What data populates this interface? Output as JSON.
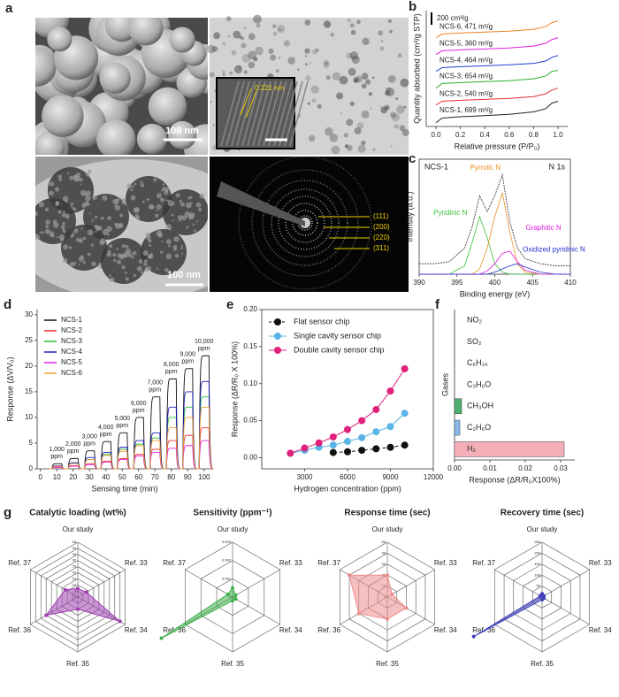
{
  "panel_a": {
    "label": "a",
    "scale_bars": [
      "100 nm",
      "100 nm"
    ],
    "lattice_spacing": "0.221 nm",
    "diffraction_rings": [
      "(111)",
      "(200)",
      "(220)",
      "(311)"
    ]
  },
  "chart_data": [
    {
      "type": "line",
      "label": "b",
      "ylabel": "Quantity absorbed (cm³/g STP)",
      "xlabel": "Relative pressure (P/P₀)",
      "scale_bar": "200 cm³/g",
      "x": [
        0,
        0.05,
        0.2,
        0.4,
        0.6,
        0.8,
        0.9,
        0.95,
        1.0
      ],
      "xlim": [
        -0.08,
        1.08
      ],
      "xticks": [
        {
          "value": 0,
          "label": "0.0"
        },
        0.2,
        0.4,
        0.6,
        0.8,
        {
          "value": 1,
          "label": "1.0"
        }
      ],
      "ylim": [
        0,
        6.2
      ],
      "series": [
        {
          "name": "NCS-1, 699 m²/g",
          "color": "#222222",
          "values": [
            0.2,
            0.45,
            0.52,
            0.58,
            0.65,
            0.78,
            0.95,
            1.25,
            1.35
          ]
        },
        {
          "name": "NCS-2, 540 m²/g",
          "color": "#e03030",
          "values": [
            1.15,
            1.35,
            1.4,
            1.45,
            1.5,
            1.6,
            1.75,
            1.95,
            2.05
          ]
        },
        {
          "name": "NCS-3, 654 m²/g",
          "color": "#2cb22c",
          "values": [
            2.05,
            2.3,
            2.35,
            2.4,
            2.45,
            2.55,
            2.7,
            2.95,
            3.0
          ]
        },
        {
          "name": "NCS-4, 464 m²/g",
          "color": "#2040d0",
          "values": [
            2.95,
            3.15,
            3.2,
            3.25,
            3.3,
            3.38,
            3.5,
            3.7,
            3.8
          ]
        },
        {
          "name": "NCS-5, 360 m²/g",
          "color": "#e020e0",
          "values": [
            3.85,
            4.05,
            4.1,
            4.15,
            4.2,
            4.3,
            4.45,
            4.65,
            4.75
          ]
        },
        {
          "name": "NCS-6, 471 m²/g",
          "color": "#f08020",
          "values": [
            4.75,
            4.95,
            5.0,
            5.05,
            5.1,
            5.2,
            5.35,
            5.55,
            5.65
          ]
        }
      ]
    },
    {
      "type": "line",
      "label": "c",
      "title": "NCS-1",
      "annotation": "N 1s",
      "ylabel": "Intensity (a.u.)",
      "xlabel": "Binding energy (eV)",
      "x": [
        390,
        392,
        394,
        396,
        397,
        398,
        399,
        400,
        401,
        402,
        403,
        404,
        406,
        408,
        410
      ],
      "xlim": [
        390,
        410
      ],
      "xticks": [
        390,
        395,
        400,
        405,
        410
      ],
      "ylim": [
        0,
        1.1
      ],
      "series": [
        {
          "color": "#555555",
          "values": [
            0.1,
            0.1,
            0.12,
            0.25,
            0.45,
            0.75,
            0.6,
            0.75,
            0.95,
            0.5,
            0.25,
            0.15,
            0.1,
            0.08,
            0.08
          ]
        },
        {
          "name": "Pyridinic N",
          "color": "#3cc03c",
          "values": [
            0,
            0,
            0,
            0.08,
            0.3,
            0.55,
            0.35,
            0.1,
            0.02,
            0,
            0,
            0,
            0,
            0,
            0
          ]
        },
        {
          "name": "Pyrrolic N",
          "color": "#e89020",
          "values": [
            0,
            0,
            0,
            0,
            0,
            0.05,
            0.25,
            0.55,
            0.78,
            0.4,
            0.1,
            0.02,
            0,
            0,
            0
          ]
        },
        {
          "name": "Graphitic N",
          "color": "#e020e0",
          "values": [
            0,
            0,
            0,
            0,
            0,
            0,
            0.03,
            0.1,
            0.2,
            0.22,
            0.12,
            0.04,
            0,
            0,
            0
          ]
        },
        {
          "name": "Oxidized pyridinic N",
          "color": "#2030d0",
          "values": [
            0,
            0,
            0,
            0,
            0,
            0,
            0,
            0.02,
            0.05,
            0.08,
            0.1,
            0.07,
            0.02,
            0,
            0
          ]
        }
      ]
    },
    {
      "type": "pulse",
      "label": "d",
      "ylabel": "Response (ΔV/V₀)",
      "xlabel": "Sensing time (min)",
      "x": [
        10,
        20,
        30,
        40,
        50,
        60,
        70,
        80,
        90,
        100
      ],
      "pulse_labels": [
        "1,000",
        "2,000",
        "3,000",
        "4,000",
        "5,000",
        "6,000",
        "7,000",
        "8,000",
        "9,000",
        "10,000"
      ],
      "pulse_unit": "ppm",
      "xlim": [
        -2,
        105
      ],
      "xticks": [
        0,
        10,
        20,
        30,
        40,
        50,
        60,
        70,
        80,
        90,
        100
      ],
      "ylim": [
        0,
        31
      ],
      "yticks": [
        0,
        5,
        10,
        15,
        20,
        25,
        30
      ],
      "series": [
        {
          "name": "NCS-1",
          "color": "#111111",
          "values": [
            1,
            2,
            3.5,
            5.3,
            7,
            10,
            14,
            17.5,
            19.5,
            22
          ]
        },
        {
          "name": "NCS-2",
          "color": "#f03030",
          "values": [
            0.3,
            0.6,
            1,
            1.5,
            2,
            2.8,
            3.8,
            5.5,
            6.5,
            8
          ]
        },
        {
          "name": "NCS-3",
          "color": "#30c030",
          "values": [
            0.5,
            1,
            1.8,
            2.8,
            3.8,
            4.8,
            6,
            10,
            12,
            14
          ]
        },
        {
          "name": "NCS-4",
          "color": "#2020c0",
          "values": [
            0.6,
            1.2,
            2.2,
            3.2,
            4.2,
            5.5,
            7,
            12,
            15,
            17
          ]
        },
        {
          "name": "NCS-5",
          "color": "#e020e0",
          "values": [
            0.3,
            0.5,
            0.8,
            1.3,
            1.8,
            2.5,
            3.2,
            4,
            4.5,
            5.5
          ]
        },
        {
          "name": "NCS-6",
          "color": "#f0a030",
          "values": [
            0.5,
            1,
            1.8,
            2.6,
            3.4,
            4.5,
            5.5,
            8,
            10,
            12
          ]
        }
      ]
    },
    {
      "type": "scatter",
      "label": "e",
      "ylabel": "Response (ΔR/R₀ X 100%)",
      "xlabel": "Hydrogen concentration (ppm)",
      "x": [
        2000,
        3000,
        4000,
        5000,
        6000,
        7000,
        8000,
        9000,
        10000
      ],
      "xlim": [
        0,
        12000
      ],
      "xticks": [
        3000,
        6000,
        9000,
        12000
      ],
      "ylim": [
        -0.015,
        0.2
      ],
      "yticks": [
        {
          "value": 0,
          "label": "0.00"
        },
        0.05,
        {
          "value": 0.1,
          "label": "0.10"
        },
        0.15,
        {
          "value": 0.2,
          "label": "0.20"
        }
      ],
      "series": [
        {
          "name": "Flat sensor chip",
          "color": "#111111",
          "dash": true,
          "values": [
            null,
            null,
            null,
            0.007,
            0.008,
            0.01,
            0.012,
            0.014,
            0.017
          ]
        },
        {
          "name": "Single cavity sensor chip",
          "color": "#5ab4e5",
          "values": [
            0.006,
            0.01,
            0.014,
            0.017,
            0.022,
            0.027,
            0.035,
            0.042,
            0.06
          ]
        },
        {
          "name": "Double cavity sensor chip",
          "color": "#e0207a",
          "values": [
            0.006,
            0.013,
            0.02,
            0.028,
            0.038,
            0.05,
            0.065,
            0.09,
            0.12
          ]
        }
      ]
    },
    {
      "type": "bar",
      "label": "f",
      "orientation": "horizontal",
      "ylabel": "Gases",
      "xlabel": "Response (ΔR/R₀X100%)",
      "categories": [
        "NO₂",
        "SO₂",
        "C₆H₁₄",
        "C₃H₆O",
        "CH₃OH",
        "C₂H₆O",
        "H₂"
      ],
      "values": [
        0,
        0,
        0,
        0,
        0.002,
        0.0015,
        0.031
      ],
      "colors": [
        "#cccccc",
        "#cccccc",
        "#cccccc",
        "#cccccc",
        "#4caf70",
        "#8ab8e8",
        "#f4b0b8"
      ],
      "xlim": [
        0,
        0.034
      ],
      "xticks": [
        {
          "value": 0,
          "label": "0.00"
        },
        0.01,
        0.02,
        0.03
      ]
    },
    {
      "type": "radar",
      "label": "g",
      "title": "Catalytic loading (wt%)",
      "color": "#a040b0",
      "axes": [
        "Our study",
        "Ref. 33",
        "Ref. 34",
        "Ref. 35",
        "Ref. 36",
        "Ref. 37"
      ],
      "values": [
        7,
        8,
        40,
        10,
        30,
        12
      ],
      "rlim": [
        0,
        45
      ],
      "rticks": [
        0,
        5,
        10,
        15,
        20,
        25,
        30,
        35,
        40,
        45
      ]
    },
    {
      "type": "radar",
      "title": "Sensitivity (ppm⁻¹)",
      "color": "#3cb04a",
      "axes": [
        "Our study",
        "Ref. 33",
        "Ref. 34",
        "Ref. 35",
        "Ref. 36",
        "Ref. 37"
      ],
      "values": [
        0.0005,
        0.0002,
        0.0002,
        0.0002,
        0.0045,
        0.0003
      ],
      "rlim": [
        0,
        0.003
      ],
      "rticks": [
        0,
        0.001,
        0.002,
        0.003
      ]
    },
    {
      "type": "radar",
      "title": "Response time (sec)",
      "color": "#f08c8c",
      "axes": [
        "Our study",
        "Ref. 33",
        "Ref. 34",
        "Ref. 35",
        "Ref. 36",
        "Ref. 37"
      ],
      "values": [
        20,
        5,
        20,
        20,
        30,
        40
      ],
      "rlim": [
        0,
        50
      ],
      "rticks": [
        0,
        10,
        20,
        30,
        40,
        50
      ]
    },
    {
      "type": "radar",
      "title": "Recovery time (sec)",
      "color": "#4040c0",
      "axes": [
        "Our study",
        "Ref. 33",
        "Ref. 34",
        "Ref. 35",
        "Ref. 36",
        "Ref. 37"
      ],
      "values": [
        15,
        10,
        10,
        12,
        360,
        10
      ],
      "rlim": [
        0,
        250
      ],
      "rticks": [
        0,
        50,
        100,
        150,
        200,
        250
      ]
    }
  ]
}
